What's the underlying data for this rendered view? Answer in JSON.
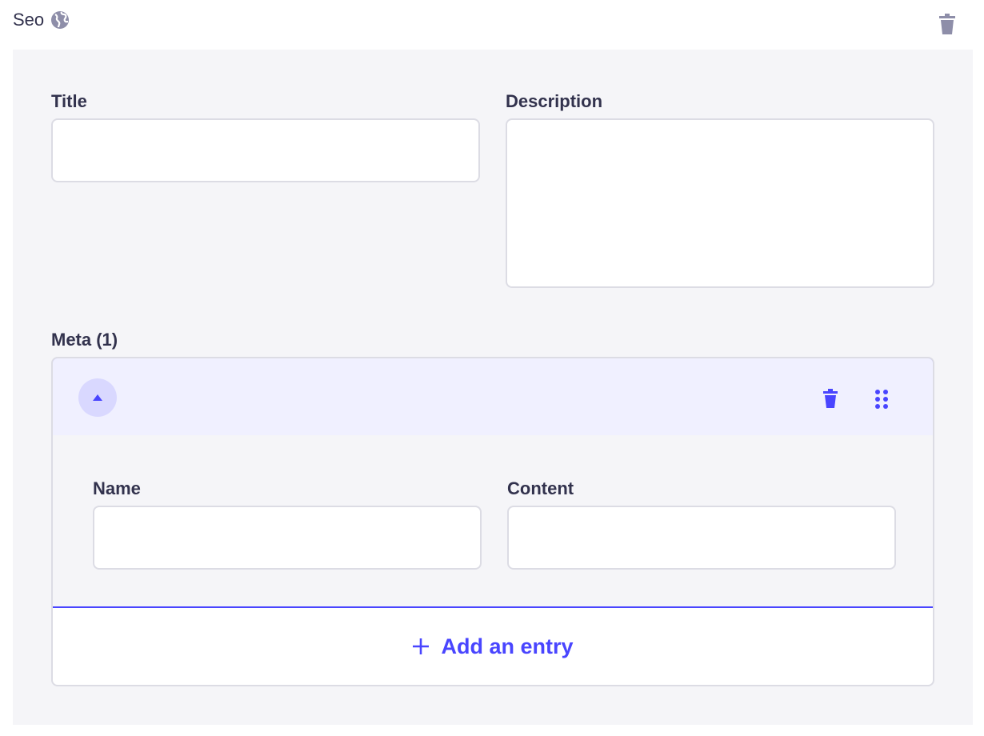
{
  "component": {
    "title": "Seo",
    "icon": "globe-icon"
  },
  "fields": {
    "title_label": "Title",
    "title_value": "",
    "description_label": "Description",
    "description_value": ""
  },
  "meta": {
    "label": "Meta (1)",
    "entry": {
      "name_label": "Name",
      "name_value": "",
      "content_label": "Content",
      "content_value": ""
    },
    "add_label": "Add an entry"
  },
  "colors": {
    "accent": "#4945ff",
    "panel": "#f5f5f8",
    "header_bg": "#f0f0ff"
  }
}
